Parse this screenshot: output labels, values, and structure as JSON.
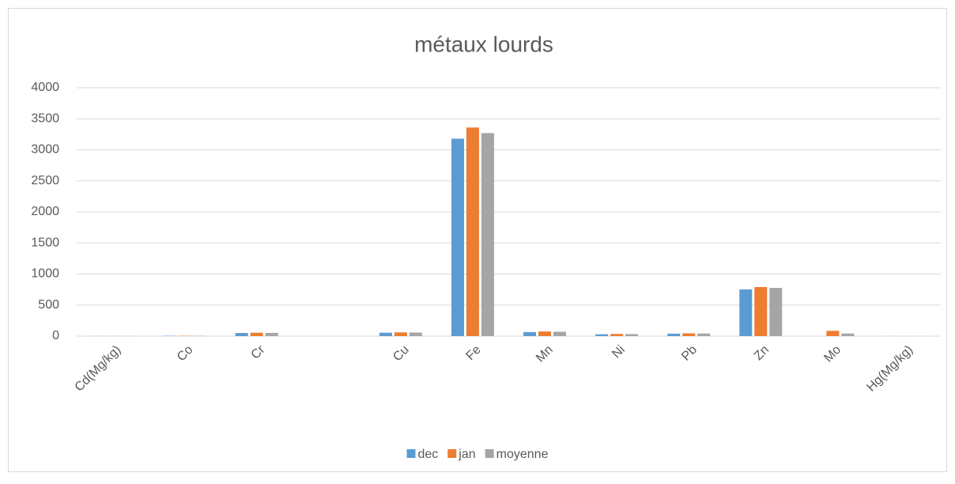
{
  "chart_data": {
    "type": "bar",
    "title": "métaux lourds",
    "categories": [
      "Cd(Mg/kg)",
      "Co",
      "Cr",
      null,
      "Cu",
      "Fe",
      "Mn",
      "Ni",
      "Pb",
      "Zn",
      "Mo",
      "Hg(Mg/kg)"
    ],
    "series": [
      {
        "name": "dec",
        "color": "#5b9bd5",
        "values": [
          1,
          5,
          50,
          null,
          55,
          3180,
          65,
          30,
          40,
          752,
          0,
          0.5
        ]
      },
      {
        "name": "jan",
        "color": "#ed7d31",
        "values": [
          1,
          5,
          55,
          null,
          60,
          3360,
          75,
          35,
          45,
          790,
          85,
          0.5
        ]
      },
      {
        "name": "moyenne",
        "color": "#a5a5a5",
        "values": [
          1,
          5,
          52,
          null,
          57,
          3270,
          70,
          32,
          42,
          777,
          42,
          0.5
        ]
      }
    ],
    "ylim": [
      0,
      4000
    ],
    "yticks": [
      0,
      500,
      1000,
      1500,
      2000,
      2500,
      3000,
      3500,
      4000
    ],
    "grid": true,
    "legend": "bottom"
  }
}
